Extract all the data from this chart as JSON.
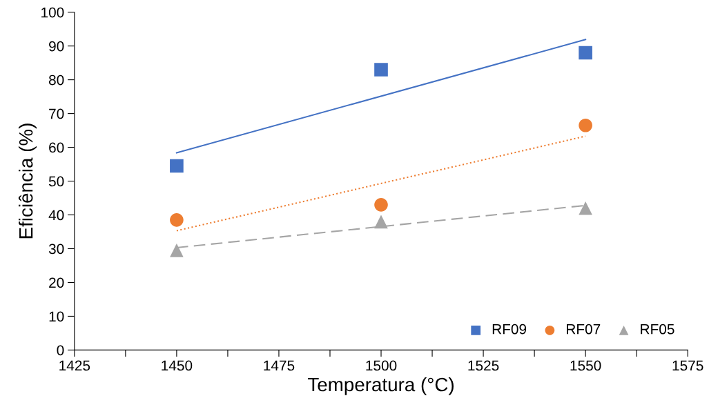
{
  "chart_data": {
    "type": "scatter",
    "xlabel": "Temperatura (°C)",
    "ylabel": "Eficiência (%)",
    "xlim": [
      1425,
      1575
    ],
    "xticks": [
      1425,
      {
        "value": 1437.5,
        "label": null
      },
      1450,
      {
        "value": 1462.5,
        "label": null
      },
      1475,
      {
        "value": 1487.5,
        "label": null
      },
      1500,
      {
        "value": 1512.5,
        "label": null
      },
      1525,
      {
        "value": 1537.5,
        "label": null
      },
      1550,
      {
        "value": 1562.5,
        "label": null
      },
      1575
    ],
    "ylim": [
      0,
      100
    ],
    "yticks": [
      0,
      10,
      20,
      30,
      40,
      50,
      60,
      70,
      80,
      90,
      100
    ],
    "grid": false,
    "legend": "bottom right",
    "series": [
      {
        "name": "RF09",
        "marker": "square",
        "color": "#4472c4",
        "x": [
          1450,
          1500,
          1550
        ],
        "values": [
          54.5,
          83,
          88
        ]
      },
      {
        "name": "RF07",
        "marker": "circle",
        "color": "#ed7d31",
        "x": [
          1450,
          1500,
          1550
        ],
        "values": [
          38.5,
          43,
          66.5
        ]
      },
      {
        "name": "RF05",
        "marker": "triangle",
        "color": "#a5a5a5",
        "x": [
          1450,
          1500,
          1550
        ],
        "values": [
          29.5,
          38,
          42
        ]
      },
      {
        "type": "line",
        "line_style": "solid",
        "color": "#4472c4",
        "x": [
          1450,
          1550
        ],
        "values": [
          58.4,
          91.9
        ]
      },
      {
        "type": "line",
        "line_style": "dotted",
        "color": "#ed7d31",
        "x": [
          1450,
          1550
        ],
        "values": [
          35.3,
          63.3
        ]
      },
      {
        "type": "line",
        "line_style": "dashed",
        "color": "#a5a5a5",
        "x": [
          1450,
          1550
        ],
        "values": [
          30.3,
          42.8
        ]
      }
    ]
  }
}
